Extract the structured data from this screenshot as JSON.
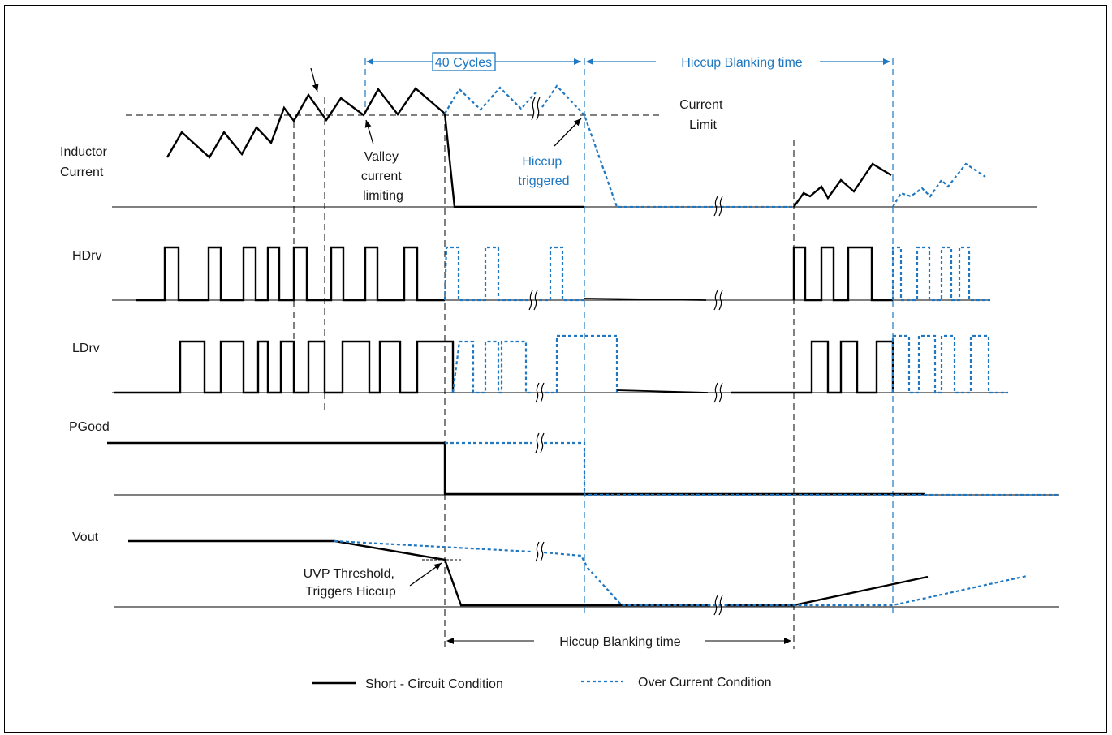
{
  "signals": {
    "inductor_current": "Inductor\nCurrent",
    "hdrv": "HDrv",
    "ldrv": "LDrv",
    "pgood": "PGood",
    "vout": "Vout"
  },
  "annotations": {
    "cycles_40": "40 Cycles",
    "hiccup_blanking_top": "Hiccup Blanking time",
    "hiccup_blanking_bottom": "Hiccup Blanking time",
    "current_limit": "Current\nLimit",
    "valley_limiting": "Valley\ncurrent\nlimiting",
    "hiccup_triggered": "Hiccup\ntriggered",
    "uvp_threshold": "UVP Threshold,\nTriggers Hiccup"
  },
  "legend": {
    "short_circuit": "Short - Circuit Condition",
    "over_current": "Over Current Condition"
  },
  "colors": {
    "short_circuit": "#000000",
    "over_current": "#1f78c1"
  }
}
